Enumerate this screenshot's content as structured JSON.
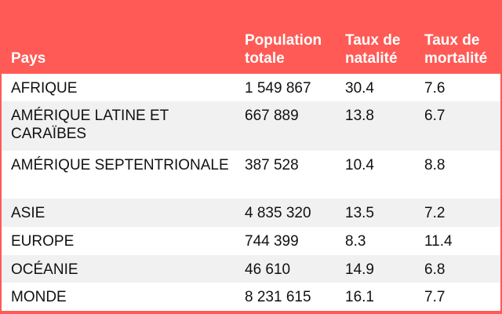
{
  "table": {
    "headers": {
      "country": "Pays",
      "population": "Population totale",
      "birth_rate": "Taux de natalité",
      "death_rate": "Taux de mortalité"
    },
    "rows": [
      {
        "country": "AFRIQUE",
        "population": "1 549 867",
        "birth_rate": "30.4",
        "death_rate": "7.6"
      },
      {
        "country": "AMÉRIQUE LATINE ET CARAÏBES",
        "population": "667 889",
        "birth_rate": "13.8",
        "death_rate": "6.7"
      },
      {
        "country": "AMÉRIQUE SEPTENTRIONALE",
        "population": "387 528",
        "birth_rate": "10.4",
        "death_rate": "8.8"
      },
      {
        "country": "ASIE",
        "population": "4 835 320",
        "birth_rate": "13.5",
        "death_rate": "7.2"
      },
      {
        "country": "EUROPE",
        "population": "744 399",
        "birth_rate": "8.3",
        "death_rate": "11.4"
      },
      {
        "country": "OCÉANIE",
        "population": "46 610",
        "birth_rate": "14.9",
        "death_rate": "6.8"
      },
      {
        "country": "MONDE",
        "population": "8 231 615",
        "birth_rate": "16.1",
        "death_rate": "7.7"
      }
    ]
  }
}
